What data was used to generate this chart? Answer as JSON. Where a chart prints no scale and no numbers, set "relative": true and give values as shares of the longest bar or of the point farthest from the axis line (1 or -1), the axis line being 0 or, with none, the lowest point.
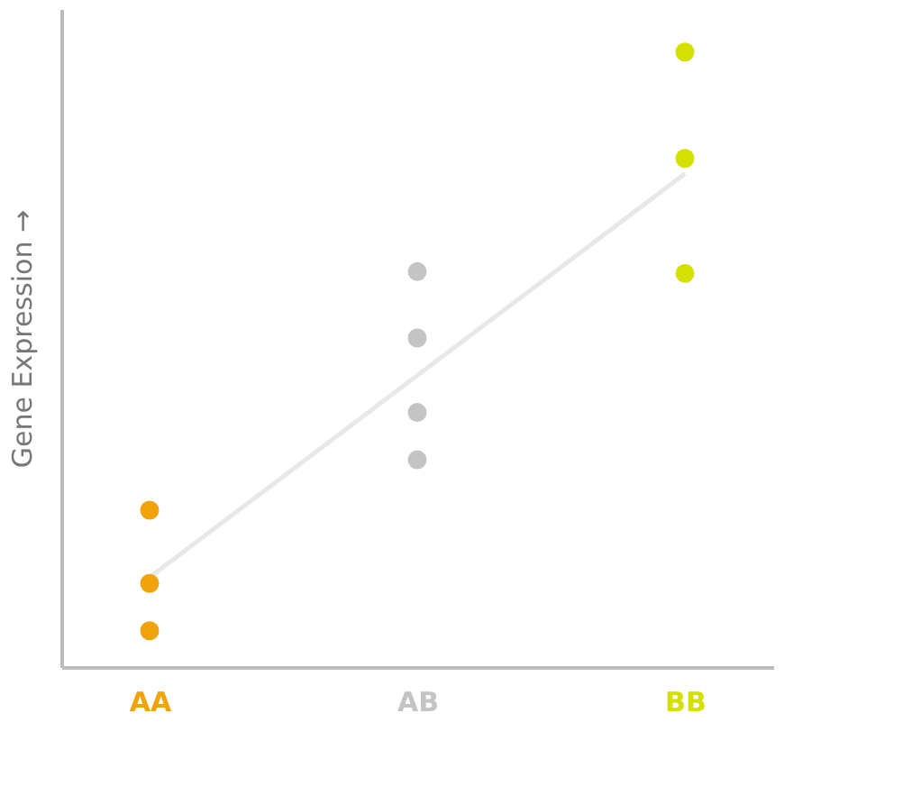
{
  "chart_data": {
    "type": "scatter",
    "relative": true,
    "ylabel": "Gene Expression →",
    "categories": [
      "AA",
      "AB",
      "BB"
    ],
    "grid": false,
    "series": [
      {
        "type": "line",
        "color": "#e8e8e8",
        "x": [
          "AA",
          "BB"
        ],
        "values": [
          0.146,
          0.802
        ]
      },
      {
        "color": "#f0a30a",
        "x": [
          "AA",
          "AA",
          "AA"
        ],
        "values": [
          0.255,
          0.136,
          0.059
        ]
      },
      {
        "color": "#c4c4c4",
        "x": [
          "AB",
          "AB",
          "AB",
          "AB"
        ],
        "values": [
          0.643,
          0.535,
          0.414,
          0.337
        ]
      },
      {
        "color": "#d4e000",
        "x": [
          "BB",
          "BB",
          "BB"
        ],
        "values": [
          1.0,
          0.827,
          0.64
        ]
      }
    ]
  }
}
